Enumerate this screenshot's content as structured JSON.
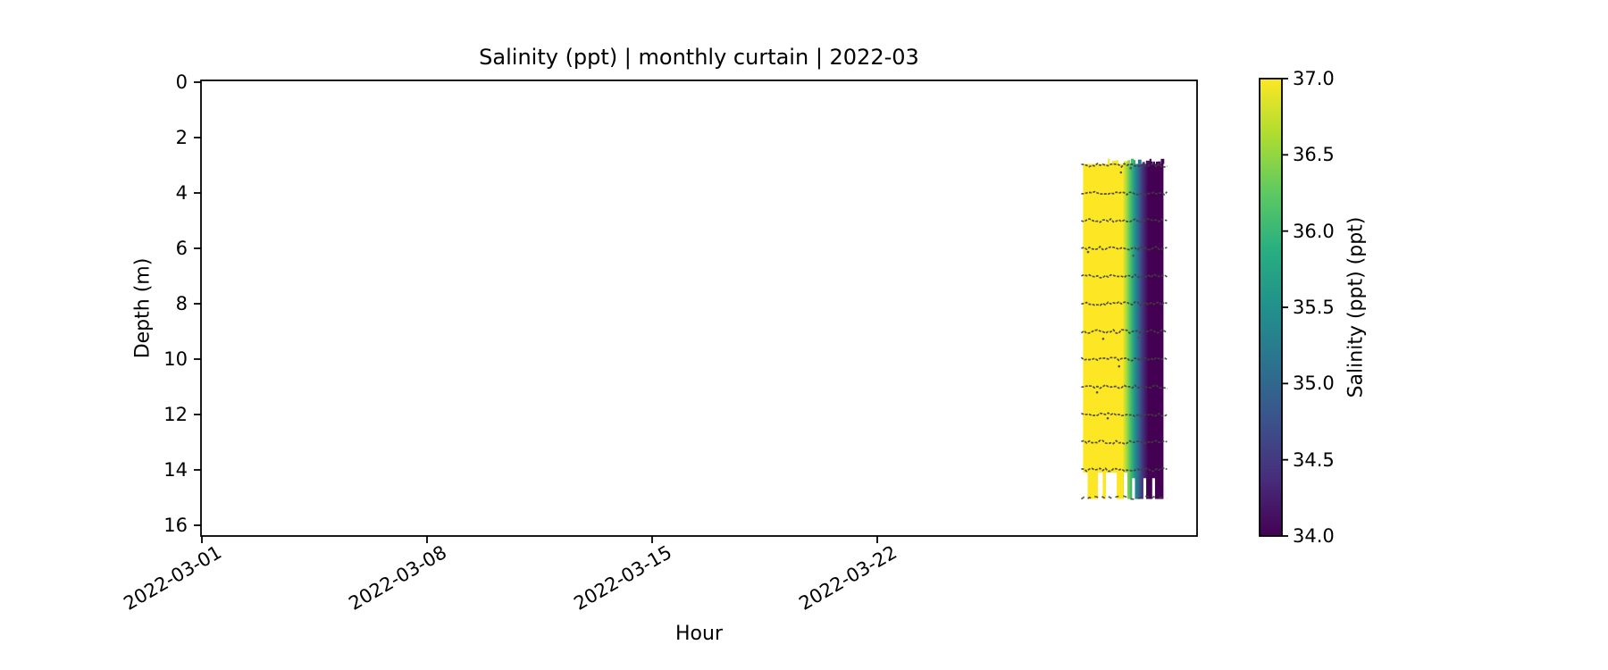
{
  "figure": {
    "background": "#ffffff"
  },
  "chart_data": {
    "type": "heatmap",
    "title": "Salinity (ppt) | monthly curtain | 2022-03",
    "xlabel": "Hour",
    "ylabel": "Depth (m)",
    "x_tick_labels": [
      "2022-03-01",
      "2022-03-08",
      "2022-03-15",
      "2022-03-22"
    ],
    "x_tick_day_offsets": [
      0,
      7,
      14,
      21
    ],
    "x_range": [
      "2022-03-01",
      "2022-04-01"
    ],
    "y_ticks_m": [
      "0",
      "2",
      "4",
      "6",
      "8",
      "10",
      "12",
      "14",
      "16"
    ],
    "y_range_m": [
      0,
      16.45
    ],
    "grid": false,
    "legend": "colorbar-right",
    "colorbar": {
      "label": "Salinity (ppt) (ppt)",
      "vmin": 34.0,
      "vmax": 37.0,
      "tick_labels": [
        "37.0",
        "36.5",
        "36.0",
        "35.5",
        "35.0",
        "34.5",
        "34.0"
      ],
      "colormap": "viridis"
    },
    "viridis_stops": [
      "#440154",
      "#472d7b",
      "#3b528b",
      "#2c728e",
      "#21918c",
      "#28ae80",
      "#5ec962",
      "#addc30",
      "#fde725"
    ],
    "curtain": {
      "description": "Colored curtain band only during last ~3 days of month; rest of March empty",
      "time_start_day_of_month": 28.4,
      "time_end_day_of_month": 30.9,
      "depth_top_m": 2.95,
      "depth_bottom_m": 15.05,
      "scatter_line_depths_m": [
        3,
        4,
        5,
        6,
        7,
        8,
        9,
        10,
        11,
        12,
        13,
        14,
        15
      ],
      "salinity_profile": [
        {
          "t": 0.0,
          "day_of_month": 28.4,
          "ppt": 37.0
        },
        {
          "t": 0.49,
          "day_of_month": 29.63,
          "ppt": 37.0
        },
        {
          "t": 0.55,
          "day_of_month": 29.78,
          "ppt": 36.5
        },
        {
          "t": 0.6,
          "day_of_month": 29.9,
          "ppt": 36.0
        },
        {
          "t": 0.645,
          "day_of_month": 30.01,
          "ppt": 35.5
        },
        {
          "t": 0.69,
          "day_of_month": 30.13,
          "ppt": 35.0
        },
        {
          "t": 0.735,
          "day_of_month": 30.24,
          "ppt": 34.5
        },
        {
          "t": 0.81,
          "day_of_month": 30.43,
          "ppt": 34.0
        },
        {
          "t": 1.0,
          "day_of_month": 30.9,
          "ppt": 34.0
        }
      ],
      "missing_segments": [
        {
          "t0": 0.0,
          "t1": 0.057,
          "d0": 14.1,
          "d1": 15.05
        },
        {
          "t0": 0.185,
          "t1": 0.245,
          "d0": 14.1,
          "d1": 15.05
        },
        {
          "t0": 0.285,
          "t1": 0.42,
          "d0": 14.1,
          "d1": 15.05
        },
        {
          "t0": 0.507,
          "t1": 0.55,
          "d0": 14.1,
          "d1": 15.05
        },
        {
          "t0": 0.61,
          "t1": 0.645,
          "d0": 14.3,
          "d1": 15.05
        },
        {
          "t0": 0.75,
          "t1": 0.785,
          "d0": 14.3,
          "d1": 15.05
        },
        {
          "t0": 0.86,
          "t1": 0.895,
          "d0": 14.3,
          "d1": 15.05
        }
      ]
    }
  }
}
